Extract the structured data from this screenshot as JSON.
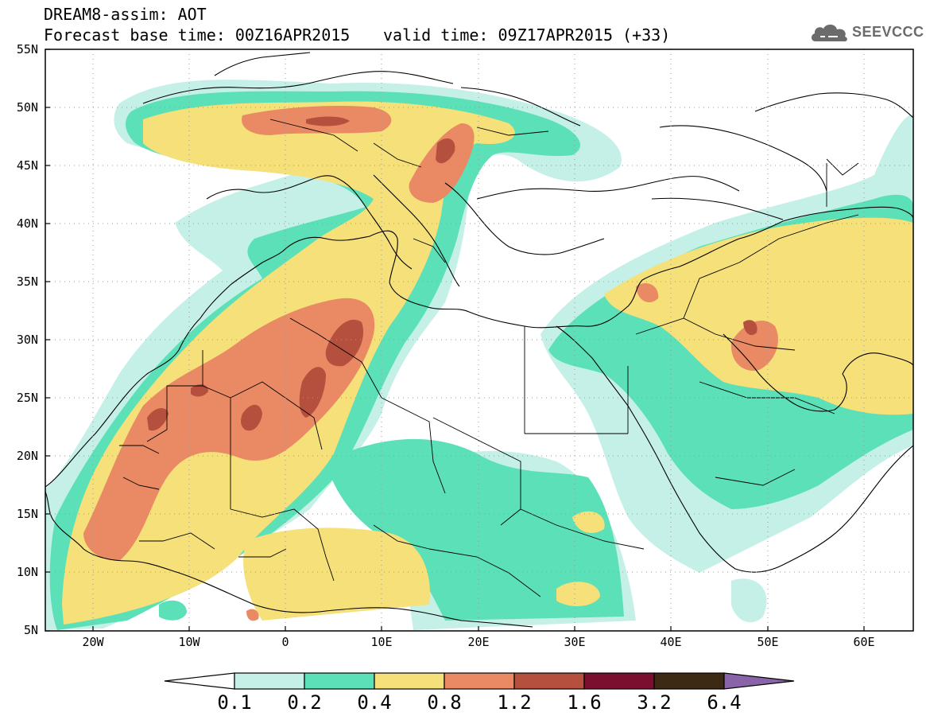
{
  "title": {
    "line1": "DREAM8-assim: AOT",
    "line2": "Forecast base time: 00Z16APR2015",
    "valid": "valid time: 09Z17APR2015 (+33)"
  },
  "logo": {
    "text": "SEEVCCC",
    "icon": "cloud-icon"
  },
  "axes": {
    "lat_labels": [
      "55N",
      "50N",
      "45N",
      "40N",
      "35N",
      "30N",
      "25N",
      "20N",
      "15N",
      "10N",
      "5N"
    ],
    "lon_labels": [
      "20W",
      "10W",
      "0",
      "10E",
      "20E",
      "30E",
      "40E",
      "50E",
      "60E"
    ],
    "lat_range": [
      5,
      55
    ],
    "lon_range": [
      -25,
      65
    ]
  },
  "colorbar": {
    "levels": [
      "0.1",
      "0.2",
      "0.4",
      "0.8",
      "1.2",
      "1.6",
      "3.2",
      "6.4"
    ],
    "colors": [
      "#c5f0e8",
      "#5ce0b8",
      "#f5e07a",
      "#e98a64",
      "#b5503e",
      "#7a0f30",
      "#3d2a14"
    ],
    "under_color": "#ffffff",
    "over_color": "#8a64a8"
  },
  "map_field": {
    "variable": "AOT",
    "grid": true
  }
}
